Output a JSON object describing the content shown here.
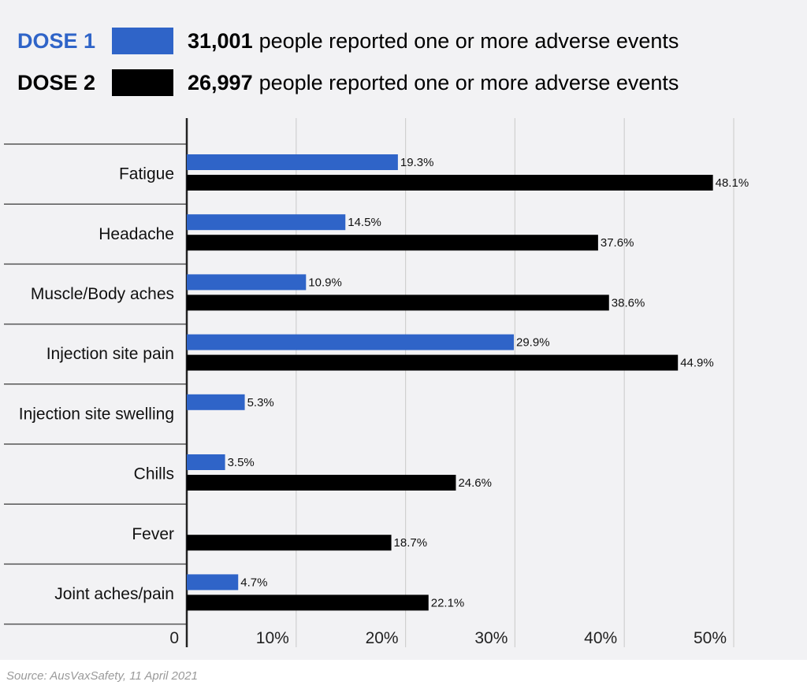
{
  "legend": [
    {
      "name": "DOSE 1",
      "color": "#2f64c8",
      "count": "31,001",
      "text": "people reported one or more adverse events"
    },
    {
      "name": "DOSE 2",
      "color": "#000000",
      "count": "26,997",
      "text": "people reported one or more adverse events"
    }
  ],
  "source": "Source: AusVaxSafety, 11 April 2021",
  "chart_data": {
    "type": "bar",
    "orientation": "horizontal",
    "categories": [
      "Fatigue",
      "Headache",
      "Muscle/Body aches",
      "Injection site pain",
      "Injection site swelling",
      "Chills",
      "Fever",
      "Joint aches/pain"
    ],
    "series": [
      {
        "name": "DOSE 1",
        "color": "#2f64c8",
        "values": [
          19.3,
          14.5,
          10.9,
          29.9,
          5.3,
          3.5,
          null,
          4.7
        ],
        "labels": [
          "19.3%",
          "14.5%",
          "10.9%",
          "29.9%",
          "5.3%",
          "3.5%",
          null,
          "4.7%"
        ]
      },
      {
        "name": "DOSE 2",
        "color": "#000000",
        "values": [
          48.1,
          37.6,
          38.6,
          44.9,
          null,
          24.6,
          18.7,
          22.1
        ],
        "labels": [
          "48.1%",
          "37.6%",
          "38.6%",
          "44.9%",
          null,
          "24.6%",
          "18.7%",
          "22.1%"
        ]
      }
    ],
    "xticks": [
      0,
      10,
      20,
      30,
      40,
      50
    ],
    "xtick_labels": [
      "0",
      "10%",
      "20%",
      "30%",
      "40%",
      "50%"
    ],
    "xlim": [
      0,
      50
    ],
    "grid": true
  }
}
